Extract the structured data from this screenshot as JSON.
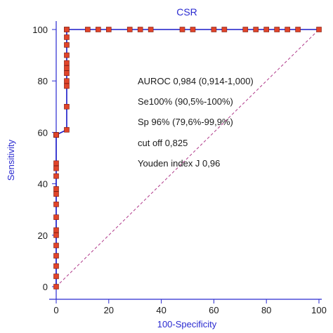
{
  "chart_data": {
    "type": "line",
    "title": "CSR",
    "xlabel": "100-Specificity",
    "ylabel": "Sensitivity",
    "xlim": [
      0,
      100
    ],
    "ylim": [
      0,
      100
    ],
    "xticks": [
      0,
      20,
      40,
      60,
      80,
      100
    ],
    "yticks": [
      0,
      20,
      40,
      60,
      80,
      100
    ],
    "grid": false,
    "annotations": [
      "AUROC 0,984 (0,914-1,000)",
      "Se100% (90,5%-100%)",
      "Sp 96% (79,6%-99,9%)",
      "cut off 0,825",
      "Youden index J 0,96"
    ],
    "series": [
      {
        "color": "#1a1ac8",
        "marker_color": "#e0442a",
        "x": [
          0,
          0,
          0,
          0,
          0,
          0,
          0,
          0,
          0,
          0,
          0,
          0,
          0,
          0,
          0,
          0,
          0,
          0,
          4,
          4,
          4,
          4,
          4,
          4,
          4,
          4,
          4,
          4,
          4,
          4,
          12,
          16,
          20,
          28,
          32,
          36,
          48,
          52,
          60,
          64,
          72,
          76,
          80,
          84,
          88,
          92,
          100
        ],
        "y": [
          0,
          4,
          8,
          12,
          16,
          20,
          22,
          27,
          32,
          36,
          38,
          43,
          46,
          48,
          59,
          59,
          59,
          59,
          61,
          70,
          78,
          80,
          83,
          85,
          87,
          90,
          94,
          97,
          100,
          100,
          100,
          100,
          100,
          100,
          100,
          100,
          100,
          100,
          100,
          100,
          100,
          100,
          100,
          100,
          100,
          100,
          100
        ]
      }
    ],
    "reference_line": {
      "color": "#b03a8a",
      "style": "dashed"
    }
  }
}
